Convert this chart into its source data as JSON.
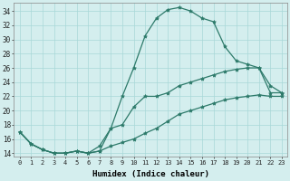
{
  "xlabel": "Humidex (Indice chaleur)",
  "xlim": [
    -0.5,
    23.5
  ],
  "ylim": [
    13.5,
    35.2
  ],
  "yticks": [
    14,
    16,
    18,
    20,
    22,
    24,
    26,
    28,
    30,
    32,
    34
  ],
  "xticks": [
    0,
    1,
    2,
    3,
    4,
    5,
    6,
    7,
    8,
    9,
    10,
    11,
    12,
    13,
    14,
    15,
    16,
    17,
    18,
    19,
    20,
    21,
    22,
    23
  ],
  "xtick_labels": [
    "0",
    "1",
    "2",
    "3",
    "4",
    "5",
    "6",
    "7",
    "8",
    "9",
    "10",
    "11",
    "12",
    "13",
    "14",
    "15",
    "16",
    "17",
    "18",
    "19",
    "20",
    "21",
    "22",
    "23"
  ],
  "background_color": "#d4eeee",
  "grid_color": "#a8d8d8",
  "line_color": "#2d7a6a",
  "line_width": 0.9,
  "marker": "*",
  "marker_size": 3,
  "series_peak": [
    17.0,
    15.3,
    14.5,
    14.0,
    14.0,
    14.3,
    14.0,
    15.0,
    17.5,
    22.0,
    26.0,
    30.5,
    33.0,
    34.2,
    34.5,
    34.0,
    33.0,
    32.5,
    29.0,
    27.0,
    26.5,
    26.0,
    23.5,
    22.5
  ],
  "series_lin1": [
    17.0,
    15.3,
    14.5,
    14.0,
    14.0,
    14.3,
    14.0,
    14.3,
    15.0,
    15.5,
    16.0,
    16.8,
    17.5,
    18.5,
    19.5,
    20.0,
    20.5,
    21.0,
    21.5,
    21.8,
    22.0,
    22.2,
    22.0,
    22.0
  ],
  "series_lin2": [
    17.0,
    15.3,
    14.5,
    14.0,
    14.0,
    14.3,
    14.0,
    14.3,
    17.5,
    18.0,
    20.5,
    22.0,
    22.0,
    22.5,
    23.5,
    24.0,
    24.5,
    25.0,
    25.5,
    25.8,
    26.0,
    26.0,
    22.5,
    22.5
  ]
}
